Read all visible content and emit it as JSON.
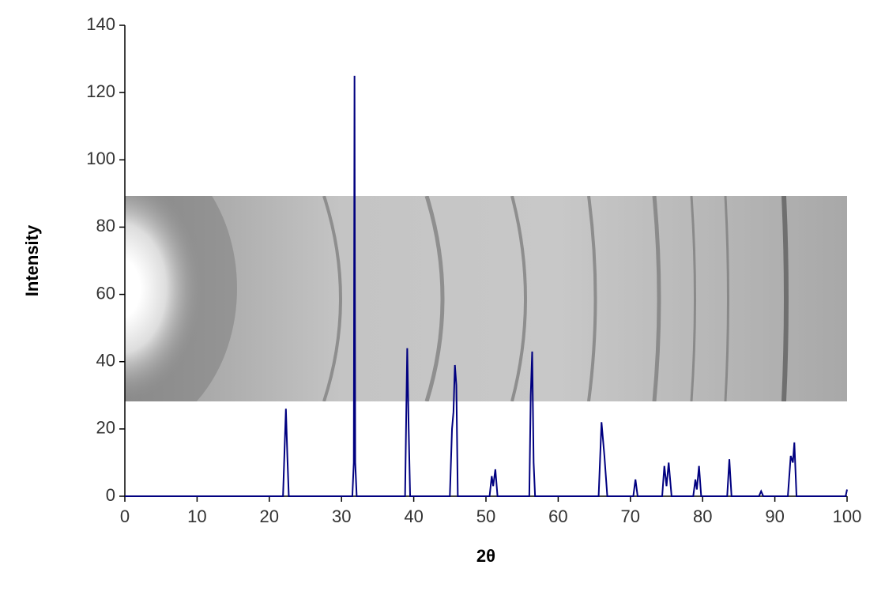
{
  "chart_data": {
    "type": "line",
    "x_label": "2θ",
    "y_label": "Intensity",
    "color": "#000080",
    "x": [
      0,
      21.9,
      22.1,
      22.3,
      22.5,
      22.7,
      31.5,
      31.7,
      31.8,
      31.9,
      32.1,
      38.8,
      39.0,
      39.1,
      39.3,
      39.5,
      45.0,
      45.3,
      45.5,
      45.7,
      45.9,
      46.1,
      50.5,
      50.8,
      51.0,
      51.3,
      51.6,
      56.0,
      56.2,
      56.4,
      56.6,
      56.8,
      65.6,
      66.0,
      66.4,
      66.8,
      70.4,
      70.7,
      71.0,
      74.4,
      74.7,
      75.0,
      75.3,
      75.7,
      78.7,
      79.0,
      79.2,
      79.5,
      79.8,
      83.4,
      83.7,
      84.0,
      87.8,
      88.1,
      88.4,
      91.8,
      92.2,
      92.5,
      92.7,
      93.0,
      99.8,
      100
    ],
    "values": [
      0,
      0,
      13,
      26,
      12,
      0,
      0,
      10,
      125,
      10,
      0,
      0,
      30,
      44,
      20,
      0,
      0,
      20,
      25,
      39,
      33,
      0,
      0,
      6,
      3,
      8,
      0,
      0,
      30,
      43,
      10,
      0,
      0,
      22,
      12,
      0,
      0,
      5,
      0,
      0,
      9,
      3,
      10,
      0,
      0,
      5,
      2,
      9,
      0,
      0,
      11,
      0,
      0,
      1.5,
      0,
      0,
      12,
      10,
      16,
      0,
      0,
      2
    ],
    "xlim": [
      0,
      100
    ],
    "xticks": [
      0,
      10,
      20,
      30,
      40,
      50,
      60,
      70,
      80,
      90,
      100
    ],
    "ylim": [
      0,
      140
    ],
    "yticks": [
      0,
      20,
      40,
      60,
      80,
      100,
      120,
      140
    ]
  }
}
